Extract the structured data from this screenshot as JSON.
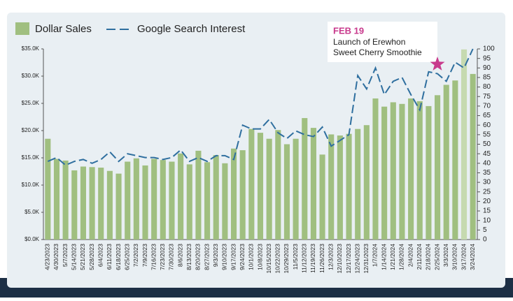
{
  "chart_data": {
    "type": "bar_line",
    "categories": [
      "4/23/2023",
      "4/30/2023",
      "5/7/2023",
      "5/14/2023",
      "5/21/2023",
      "5/28/2023",
      "6/4/2023",
      "6/11/2023",
      "6/18/2023",
      "6/25/2023",
      "7/2/2023",
      "7/9/2023",
      "7/16/2023",
      "7/23/2023",
      "7/30/2023",
      "8/6/2023",
      "8/13/2023",
      "8/20/2023",
      "8/27/2023",
      "9/3/2023",
      "9/10/2023",
      "9/17/2023",
      "9/24/2023",
      "10/1/2023",
      "10/8/2023",
      "10/15/2023",
      "10/22/2023",
      "10/29/2023",
      "11/5/2023",
      "11/12/2023",
      "11/19/2023",
      "11/26/2023",
      "12/3/2023",
      "12/10/2023",
      "12/17/2023",
      "12/24/2023",
      "12/31/2023",
      "1/7/2024",
      "1/14/2024",
      "1/21/2024",
      "1/28/2024",
      "2/4/2024",
      "2/11/2024",
      "2/18/2024",
      "2/25/2024",
      "3/3/2024",
      "3/10/2024",
      "3/17/2024",
      "3/24/2024"
    ],
    "series": [
      {
        "name": "Dollar Sales",
        "kind": "bar",
        "color": "#a0bf80",
        "colors": [
          "#a0bf80",
          "#a0bf80",
          "#a0bf80",
          "#a0bf80",
          "#a0bf80",
          "#a0bf80",
          "#a0bf80",
          "#a0bf80",
          "#a0bf80",
          "#a0bf80",
          "#a0bf80",
          "#a0bf80",
          "#a0bf80",
          "#a0bf80",
          "#a0bf80",
          "#a0bf80",
          "#a0bf80",
          "#a0bf80",
          "#a0bf80",
          "#a0bf80",
          "#a0bf80",
          "#a0bf80",
          "#a0bf80",
          "#a0bf80",
          "#a0bf80",
          "#a0bf80",
          "#a0bf80",
          "#a0bf80",
          "#a0bf80",
          "#a0bf80",
          "#a0bf80",
          "#a0bf80",
          "#a0bf80",
          "#a0bf80",
          "#a0bf80",
          "#a0bf80",
          "#a0bf80",
          "#a0bf80",
          "#a0bf80",
          "#a0bf80",
          "#a0bf80",
          "#a0bf80",
          "#a0bf80",
          "#a0bf80",
          "#a0bf80",
          "#a0bf80",
          "#a0bf80",
          "#c6dab0",
          "#a0bf80"
        ],
        "values": [
          18.5,
          14.8,
          14.5,
          12.7,
          13.4,
          13.3,
          13.2,
          12.6,
          12.1,
          14.3,
          14.9,
          13.6,
          14.8,
          14.6,
          14.3,
          15.8,
          13.8,
          16.3,
          14.2,
          15.5,
          14.0,
          16.7,
          16.4,
          20.3,
          19.6,
          18.5,
          20.1,
          17.5,
          18.5,
          22.3,
          20.5,
          15.6,
          19.3,
          19.1,
          19.4,
          20.3,
          21.0,
          25.9,
          24.4,
          25.2,
          24.9,
          25.9,
          25.4,
          24.5,
          26.5,
          28.4,
          29.2,
          34.9,
          30.4
        ]
      },
      {
        "name": "Google Search Interest",
        "kind": "line",
        "axis": "y2",
        "color": "#2f6f9f",
        "values": [
          41,
          43,
          39,
          41,
          42,
          40,
          42,
          46,
          41,
          45,
          44,
          43,
          43,
          42,
          43,
          47,
          41,
          43,
          41,
          44,
          44,
          42,
          60,
          58,
          58,
          63,
          56,
          53,
          57,
          55,
          54,
          59,
          49,
          52,
          55,
          86,
          79,
          90,
          76,
          83,
          85,
          76,
          68,
          88,
          87,
          83,
          93,
          90,
          100
        ]
      }
    ],
    "ylim": [
      0,
      35
    ],
    "yticks": [
      {
        "value": 0,
        "label": "$0.0K"
      },
      {
        "value": 5,
        "label": "$5.0K"
      },
      {
        "value": 10,
        "label": "$10.0K"
      },
      {
        "value": 15,
        "label": "$15.0K"
      },
      {
        "value": 20,
        "label": "$20.0K"
      },
      {
        "value": 25,
        "label": "$25.0K"
      },
      {
        "value": 30,
        "label": "$30.0K"
      },
      {
        "value": 35,
        "label": "$35.0K"
      }
    ],
    "y2lim": [
      0,
      100
    ],
    "y2ticks": [
      0,
      5,
      10,
      15,
      20,
      25,
      30,
      35,
      40,
      45,
      50,
      55,
      60,
      65,
      70,
      75,
      80,
      85,
      90,
      95,
      100
    ],
    "annotation": {
      "title": "FEB 19",
      "lines": [
        "Launch of Erewhon",
        "Sweet Cherry Smoothie"
      ],
      "color": "#c8398c"
    }
  }
}
